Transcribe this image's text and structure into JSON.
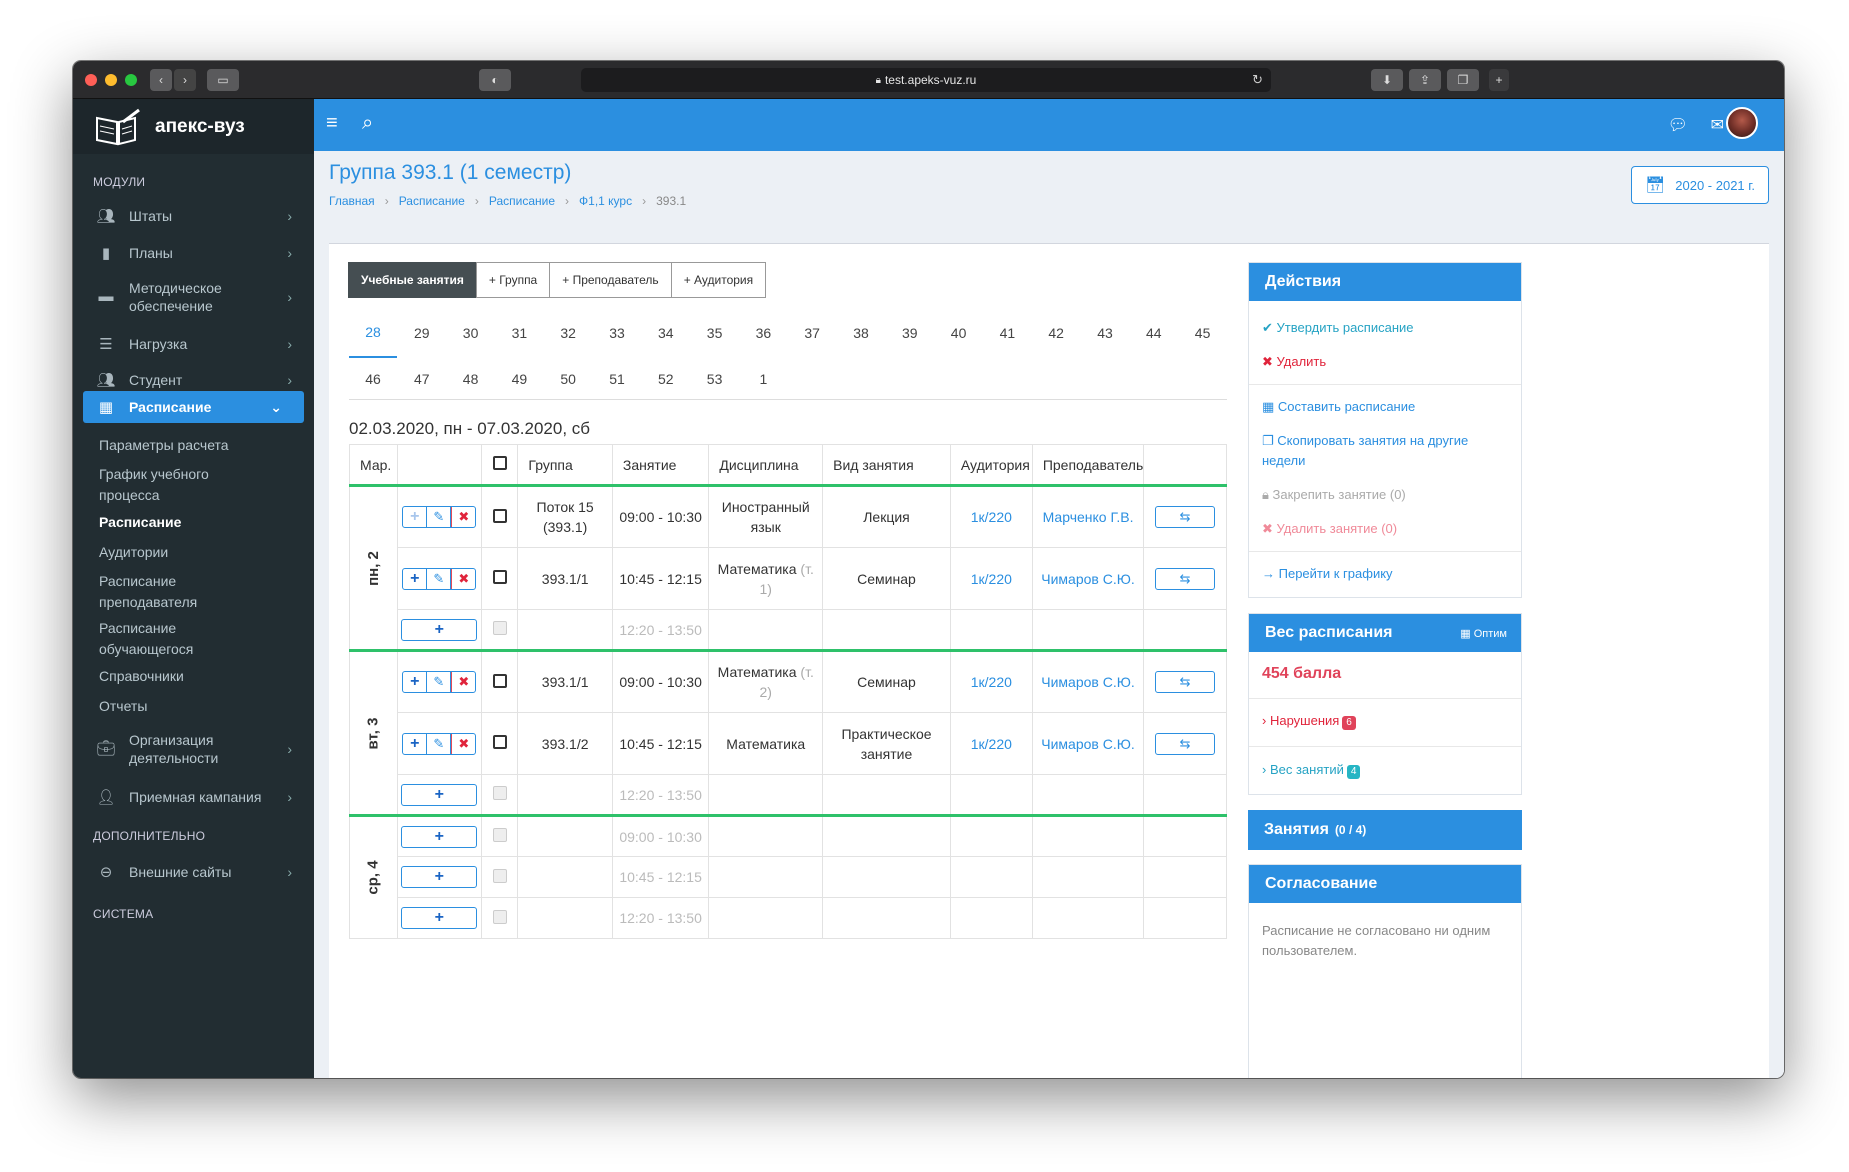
{
  "browser": {
    "url": "test.apeks-vuz.ru"
  },
  "brand": {
    "name": "апекс-вуз"
  },
  "sidebar": {
    "section_modules": "МОДУЛИ",
    "items": [
      {
        "label": "Штаты",
        "icon": "users-icon"
      },
      {
        "label": "Планы",
        "icon": "file-icon"
      },
      {
        "label": "Методическое обеспечение",
        "icon": "folder-icon"
      },
      {
        "label": "Нагрузка",
        "icon": "server-icon"
      },
      {
        "label": "Студент",
        "icon": "users-icon"
      },
      {
        "label": "Расписание",
        "icon": "calendar-icon"
      }
    ],
    "sub_items": [
      "Параметры расчета",
      "График учебного процесса",
      "Расписание",
      "Аудитории",
      "Расписание преподавателя",
      "Расписание обучающегося",
      "Справочники",
      "Отчеты"
    ],
    "more_items": [
      {
        "label": "Организация деятельности",
        "icon": "briefcase-icon"
      },
      {
        "label": "Приемная кампания",
        "icon": "user-plus-icon"
      }
    ],
    "section_extra": "ДОПОЛНИТЕЛЬНО",
    "extra_items": [
      {
        "label": "Внешние сайты",
        "icon": "link-icon"
      }
    ],
    "section_system": "СИСТЕМА"
  },
  "header": {
    "title": "Группа 393.1 (1 семестр)",
    "breadcrumbs": [
      "Главная",
      "Расписание",
      "Расписание",
      "Ф1,1 курс",
      "393.1"
    ],
    "year": "2020 - 2021 г."
  },
  "tabs": [
    "Учебные занятия",
    "+ Группа",
    "+ Преподаватель",
    "+ Аудитория"
  ],
  "weeks": [
    "28",
    "29",
    "30",
    "31",
    "32",
    "33",
    "34",
    "35",
    "36",
    "37",
    "38",
    "39",
    "40",
    "41",
    "42",
    "43",
    "44",
    "45",
    "46",
    "47",
    "48",
    "49",
    "50",
    "51",
    "52",
    "53",
    "1"
  ],
  "selected_week": "28",
  "date_range": "02.03.2020, пн - 07.03.2020, сб",
  "table": {
    "columns": [
      "Мар.",
      "",
      "Группа",
      "Занятие",
      "Дисциплина",
      "Вид занятия",
      "Аудитория",
      "Преподаватель"
    ],
    "days": [
      {
        "label": "пн, 2",
        "rows": [
          {
            "group": "Поток 15 (393.1)",
            "time": "09:00 - 10:30",
            "discipline": "Иностранный язык",
            "disc_extra": "",
            "type": "Лекция",
            "room": "1к/220",
            "teacher": "Марченко Г.В."
          },
          {
            "group": "393.1/1",
            "time": "10:45 - 12:15",
            "discipline": "Математика",
            "disc_extra": "(т. 1)",
            "type": "Семинар",
            "room": "1к/220",
            "teacher": "Чимаров С.Ю."
          },
          {
            "empty": true,
            "time": "12:20 - 13:50"
          }
        ]
      },
      {
        "label": "вт, 3",
        "rows": [
          {
            "group": "393.1/1",
            "time": "09:00 - 10:30",
            "discipline": "Математика",
            "disc_extra": "(т. 2)",
            "type": "Семинар",
            "room": "1к/220",
            "teacher": "Чимаров С.Ю."
          },
          {
            "group": "393.1/2",
            "time": "10:45 - 12:15",
            "discipline": "Математика",
            "disc_extra": "",
            "type": "Практическое занятие",
            "room": "1к/220",
            "teacher": "Чимаров С.Ю."
          },
          {
            "empty": true,
            "time": "12:20 - 13:50"
          }
        ]
      },
      {
        "label": "ср, 4",
        "rows": [
          {
            "empty": true,
            "time": "09:00 - 10:30"
          },
          {
            "empty": true,
            "time": "10:45 - 12:15"
          },
          {
            "empty": true,
            "time": "12:20 - 13:50"
          }
        ]
      }
    ]
  },
  "actions": {
    "title": "Действия",
    "approve": "Утвердить расписание",
    "delete": "Удалить",
    "compose": "Составить расписание",
    "copy": "Скопировать занятия на другие недели",
    "lock": "Закрепить занятие (0)",
    "delete_lesson": "Удалить занятие (0)",
    "goto": "Перейти к графику"
  },
  "weight": {
    "title": "Вес расписания",
    "optim": "Оптим",
    "score": "454 балла",
    "violations": "Нарушения",
    "violations_count": "6",
    "lessons_weight": "Вес занятий",
    "lessons_weight_count": "4"
  },
  "lessons": {
    "title": "Занятия",
    "count": "(0 / 4)"
  },
  "approval": {
    "title": "Согласование",
    "text": "Расписание не согласовано ни одним пользователем."
  },
  "colors": {
    "accent": "#2b8fe0",
    "sidebar": "#222d32",
    "day_border": "#2ec16a",
    "danger": "#e0243b"
  }
}
